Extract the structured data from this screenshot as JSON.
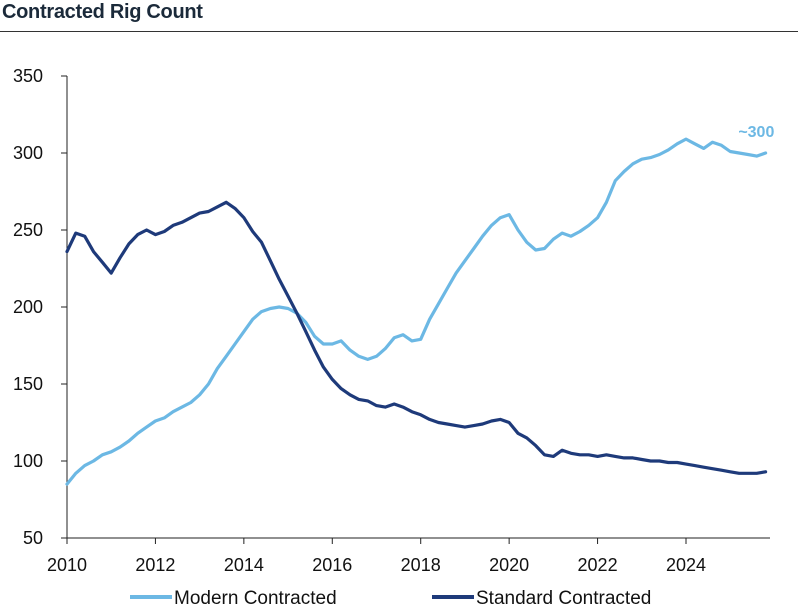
{
  "chart_data": {
    "type": "line",
    "title": "Contracted Rig Count",
    "xlabel": "",
    "ylabel": "",
    "xlim": [
      2010,
      2025.9
    ],
    "ylim": [
      50,
      350
    ],
    "yticks": [
      50,
      100,
      150,
      200,
      250,
      300,
      350
    ],
    "xticks": [
      2010,
      2012,
      2014,
      2016,
      2018,
      2020,
      2022,
      2024
    ],
    "grid": false,
    "legend_position": "bottom",
    "annotation": {
      "text": "~300",
      "x": 2025.5,
      "y": 304,
      "color": "#6cb8e4"
    },
    "series": [
      {
        "name": "Modern Contracted",
        "color": "#6cb8e4",
        "x": [
          2010.0,
          2010.2,
          2010.4,
          2010.6,
          2010.8,
          2011.0,
          2011.2,
          2011.4,
          2011.6,
          2011.8,
          2012.0,
          2012.2,
          2012.4,
          2012.6,
          2012.8,
          2013.0,
          2013.2,
          2013.4,
          2013.6,
          2013.8,
          2014.0,
          2014.2,
          2014.4,
          2014.6,
          2014.8,
          2015.0,
          2015.2,
          2015.4,
          2015.6,
          2015.8,
          2016.0,
          2016.2,
          2016.4,
          2016.6,
          2016.8,
          2017.0,
          2017.2,
          2017.4,
          2017.6,
          2017.8,
          2018.0,
          2018.2,
          2018.4,
          2018.6,
          2018.8,
          2019.0,
          2019.2,
          2019.4,
          2019.6,
          2019.8,
          2020.0,
          2020.2,
          2020.4,
          2020.6,
          2020.8,
          2021.0,
          2021.2,
          2021.4,
          2021.6,
          2021.8,
          2022.0,
          2022.2,
          2022.4,
          2022.6,
          2022.8,
          2023.0,
          2023.2,
          2023.4,
          2023.6,
          2023.8,
          2024.0,
          2024.2,
          2024.4,
          2024.6,
          2024.8,
          2025.0,
          2025.2,
          2025.4,
          2025.6,
          2025.8
        ],
        "values": [
          85,
          92,
          97,
          100,
          104,
          106,
          109,
          113,
          118,
          122,
          126,
          128,
          132,
          135,
          138,
          143,
          150,
          160,
          168,
          176,
          184,
          192,
          197,
          199,
          200,
          199,
          196,
          190,
          181,
          176,
          176,
          178,
          172,
          168,
          166,
          168,
          173,
          180,
          182,
          178,
          179,
          192,
          202,
          212,
          222,
          230,
          238,
          246,
          253,
          258,
          260,
          250,
          242,
          237,
          238,
          244,
          248,
          246,
          249,
          253,
          258,
          268,
          282,
          288,
          293,
          296,
          297,
          299,
          302,
          306,
          309,
          306,
          303,
          307,
          305,
          301,
          300,
          299,
          298,
          300
        ]
      },
      {
        "name": "Standard Contracted",
        "color": "#1e3a7a",
        "x": [
          2010.0,
          2010.2,
          2010.4,
          2010.6,
          2010.8,
          2011.0,
          2011.2,
          2011.4,
          2011.6,
          2011.8,
          2012.0,
          2012.2,
          2012.4,
          2012.6,
          2012.8,
          2013.0,
          2013.2,
          2013.4,
          2013.6,
          2013.8,
          2014.0,
          2014.2,
          2014.4,
          2014.6,
          2014.8,
          2015.0,
          2015.2,
          2015.4,
          2015.6,
          2015.8,
          2016.0,
          2016.2,
          2016.4,
          2016.6,
          2016.8,
          2017.0,
          2017.2,
          2017.4,
          2017.6,
          2017.8,
          2018.0,
          2018.2,
          2018.4,
          2018.6,
          2018.8,
          2019.0,
          2019.2,
          2019.4,
          2019.6,
          2019.8,
          2020.0,
          2020.2,
          2020.4,
          2020.6,
          2020.8,
          2021.0,
          2021.2,
          2021.4,
          2021.6,
          2021.8,
          2022.0,
          2022.2,
          2022.4,
          2022.6,
          2022.8,
          2023.0,
          2023.2,
          2023.4,
          2023.6,
          2023.8,
          2024.0,
          2024.2,
          2024.4,
          2024.6,
          2024.8,
          2025.0,
          2025.2,
          2025.4,
          2025.6,
          2025.8
        ],
        "values": [
          236,
          248,
          246,
          236,
          229,
          222,
          232,
          241,
          247,
          250,
          247,
          249,
          253,
          255,
          258,
          261,
          262,
          265,
          268,
          264,
          258,
          249,
          242,
          230,
          218,
          207,
          196,
          184,
          172,
          161,
          153,
          147,
          143,
          140,
          139,
          136,
          135,
          137,
          135,
          132,
          130,
          127,
          125,
          124,
          123,
          122,
          123,
          124,
          126,
          127,
          125,
          118,
          115,
          110,
          104,
          103,
          107,
          105,
          104,
          104,
          103,
          104,
          103,
          102,
          102,
          101,
          100,
          100,
          99,
          99,
          98,
          97,
          96,
          95,
          94,
          93,
          92,
          92,
          92,
          93
        ]
      }
    ]
  }
}
